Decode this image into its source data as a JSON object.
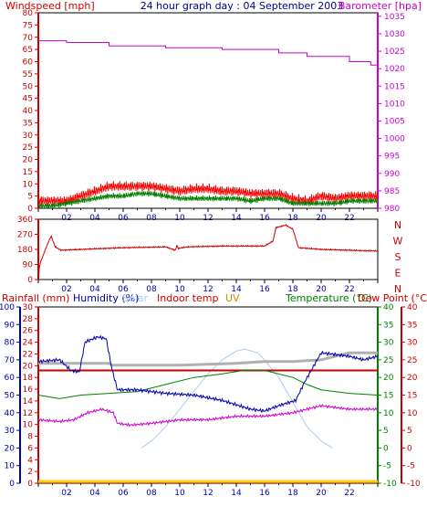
{
  "header": {
    "wind_label": "Windspeed [mph]",
    "title": "24 hour graph day : 04 September 2003",
    "baro_label": "Barometer [hpa]"
  },
  "bottom_header": {
    "rain_label": "Rainfall (mm)",
    "humidity_label": "Humidity (%)",
    "solar_label": "Solar",
    "indoor_label": "Indoor temp",
    "uv_label": "UV",
    "temp_label": "Temperature (°C)",
    "dew_label": "Dew Point (°C)"
  },
  "x_ticks": [
    "02",
    "04",
    "06",
    "08",
    "10",
    "12",
    "14",
    "16",
    "18",
    "20",
    "22"
  ],
  "colors": {
    "wind_gust": "#ff0000",
    "wind_avg": "#008000",
    "barometer": "#cc00cc",
    "direction": "#cc0000",
    "humidity": "#0000aa",
    "temperature": "#008000",
    "dew_point": "#cc00cc",
    "indoor": "#cc0000",
    "solar": "#aaccee",
    "uv": "#ffcc00",
    "outdoor_pale": "#b0b0b0"
  },
  "chart_data": [
    {
      "type": "line",
      "name": "wind-barometer",
      "xlim": [
        0,
        24
      ],
      "wind_yticks": [
        0,
        5,
        10,
        15,
        20,
        25,
        30,
        35,
        40,
        45,
        50,
        55,
        60,
        65,
        70,
        75,
        80
      ],
      "baro_yticks": [
        980,
        985,
        990,
        995,
        1000,
        1005,
        1010,
        1015,
        1020,
        1025,
        1030,
        1035
      ],
      "wind_ylim": [
        0,
        80
      ],
      "baro_ylim": [
        980,
        1036
      ],
      "wind_gust": {
        "x": [
          0,
          1,
          2,
          3,
          4,
          5,
          6,
          7,
          8,
          9,
          10,
          11,
          12,
          13,
          14,
          15,
          16,
          17,
          18,
          19,
          20,
          21,
          22,
          23,
          24
        ],
        "y": [
          3,
          3,
          3,
          5,
          7,
          9,
          9,
          9,
          9,
          8,
          7,
          8,
          8,
          7,
          7,
          6,
          6,
          6,
          4,
          3,
          5,
          4,
          5,
          5,
          5
        ]
      },
      "wind_avg": {
        "x": [
          0,
          1,
          2,
          3,
          4,
          5,
          6,
          7,
          8,
          9,
          10,
          11,
          12,
          13,
          14,
          15,
          16,
          17,
          18,
          19,
          20,
          21,
          22,
          23,
          24
        ],
        "y": [
          1,
          1,
          2,
          3,
          4,
          5,
          5,
          6,
          6,
          5,
          4,
          4,
          4,
          4,
          4,
          3,
          4,
          4,
          2,
          2,
          2,
          2,
          3,
          3,
          3
        ]
      },
      "barometer": {
        "x": [
          0,
          2,
          2,
          5,
          5,
          9,
          9,
          13,
          13,
          17,
          17,
          19,
          19,
          22,
          22,
          23.5,
          23.5,
          24
        ],
        "y": [
          1028,
          1028,
          1027.5,
          1027.5,
          1026.5,
          1026.5,
          1026,
          1026,
          1025.5,
          1025.5,
          1024.5,
          1024.5,
          1023.5,
          1023.5,
          1022,
          1022,
          1021,
          1021
        ]
      }
    },
    {
      "type": "line",
      "name": "wind-direction",
      "xlim": [
        0,
        24
      ],
      "yticks": [
        0,
        90,
        180,
        270,
        360
      ],
      "ylim": [
        0,
        360
      ],
      "compass_labels": [
        "N",
        "W",
        "S",
        "E",
        "N"
      ],
      "direction": {
        "x": [
          0,
          0.1,
          0.5,
          0.9,
          1.2,
          1.6,
          3,
          6,
          9,
          9.7,
          9.8,
          9.9,
          10.5,
          13,
          16,
          16.6,
          16.8,
          17.5,
          18,
          18.4,
          20,
          24
        ],
        "y": [
          0,
          90,
          180,
          260,
          195,
          175,
          180,
          190,
          195,
          175,
          205,
          185,
          195,
          200,
          200,
          230,
          310,
          325,
          300,
          190,
          180,
          170
        ]
      }
    },
    {
      "type": "line",
      "name": "humidity-temperature",
      "xlim": [
        0,
        24
      ],
      "humidity_yticks": [
        0,
        10,
        20,
        30,
        40,
        50,
        60,
        70,
        80,
        90,
        100
      ],
      "humidity_ylim": [
        0,
        100
      ],
      "rain_yticks": [
        0,
        2,
        4,
        6,
        8,
        10,
        12,
        14,
        16,
        18,
        20,
        22,
        24,
        26,
        28,
        30
      ],
      "rain_ylim": [
        0,
        30
      ],
      "temp_yticks": [
        -10,
        -5,
        0,
        5,
        10,
        15,
        20,
        25,
        30,
        35,
        40
      ],
      "temp_ylim": [
        -10,
        40
      ],
      "dew_yticks": [
        -10,
        -5,
        0,
        5,
        10,
        15,
        20,
        25,
        30,
        35,
        40
      ],
      "humidity": {
        "x": [
          0,
          1.5,
          2.3,
          2.9,
          3.3,
          4.2,
          4.8,
          5.2,
          5.6,
          7,
          9,
          11,
          13,
          15,
          16,
          17,
          18.2,
          18.8,
          20,
          22,
          23,
          24
        ],
        "y": [
          69,
          70,
          64,
          63,
          80,
          83,
          82,
          65,
          53,
          53,
          51,
          50,
          47,
          42,
          41,
          44,
          47,
          57,
          74,
          72,
          70,
          72
        ]
      },
      "temperature": {
        "x": [
          0,
          1.5,
          3,
          5,
          7,
          9,
          11,
          13,
          14.5,
          16,
          18,
          19,
          20,
          22,
          24
        ],
        "y": [
          15,
          14,
          15,
          15.5,
          16,
          18,
          20,
          21,
          22,
          22,
          20,
          18,
          16.5,
          15.5,
          15
        ]
      },
      "dew_point": {
        "x": [
          0,
          1.5,
          2.5,
          3.5,
          4.5,
          5.3,
          5.6,
          6.5,
          8,
          10,
          12,
          14,
          16,
          18,
          20,
          22,
          24
        ],
        "y": [
          8,
          7.5,
          8,
          10,
          11,
          10,
          7,
          6.5,
          7,
          8,
          8,
          9,
          9,
          10,
          12,
          11,
          11
        ]
      },
      "indoor_temp": {
        "x": [
          0,
          24
        ],
        "y": [
          22,
          22
        ]
      },
      "outdoor_pale": {
        "x": [
          0,
          5,
          5.2,
          10,
          14,
          16,
          18,
          20,
          21,
          22,
          24
        ],
        "y": [
          24,
          24,
          23.5,
          23.5,
          24,
          24.5,
          24.5,
          25,
          26,
          27,
          27
        ]
      },
      "solar": {
        "x": [
          7.3,
          8,
          9,
          10,
          11,
          12,
          13,
          14,
          14.6,
          15.5,
          16,
          17,
          18,
          19,
          20,
          20.8
        ],
        "y": [
          0,
          2,
          6,
          11,
          16,
          21,
          25,
          27.5,
          28,
          27,
          25,
          20,
          13,
          6,
          2,
          0
        ]
      },
      "uv": {
        "x": [
          0,
          24
        ],
        "y": [
          0,
          0
        ]
      }
    }
  ]
}
